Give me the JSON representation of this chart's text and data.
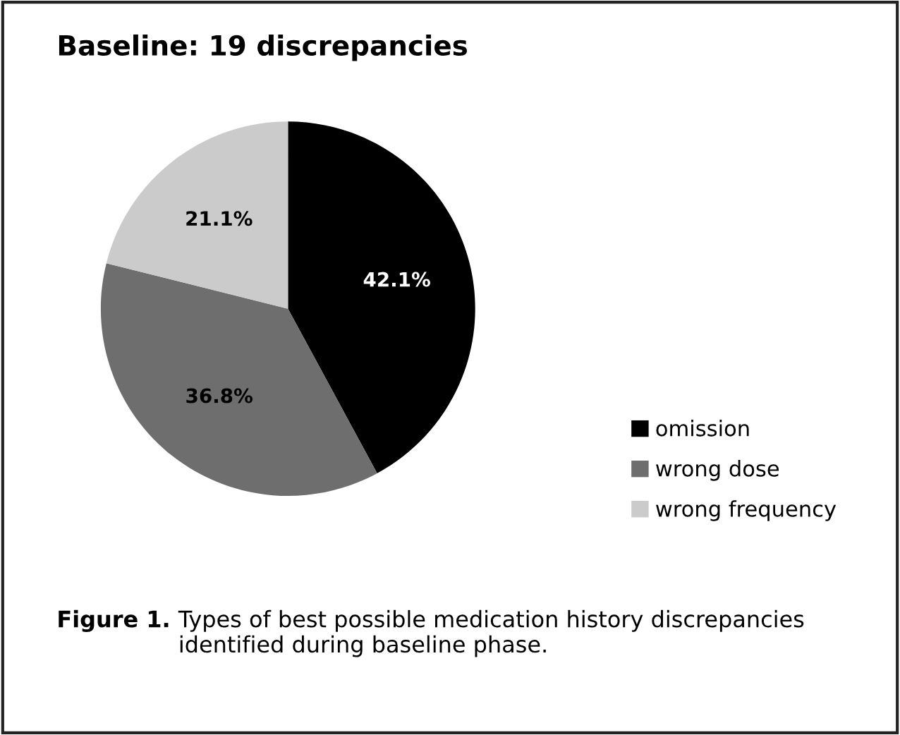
{
  "chart_data": {
    "type": "pie",
    "title": "Baseline: 19 discrepancies",
    "categories": [
      "omission",
      "wrong dose",
      "wrong frequency"
    ],
    "values": [
      42.1,
      36.8,
      21.1
    ],
    "colors": [
      "#000000",
      "#6e6e6e",
      "#cbcbcb"
    ],
    "value_labels": [
      "42.1%",
      "36.8%",
      "21.1%"
    ],
    "legend": "right",
    "annotations": [
      "Figure 1.",
      "Types of best possible medication history discrepancies identified during baseline phase."
    ]
  }
}
